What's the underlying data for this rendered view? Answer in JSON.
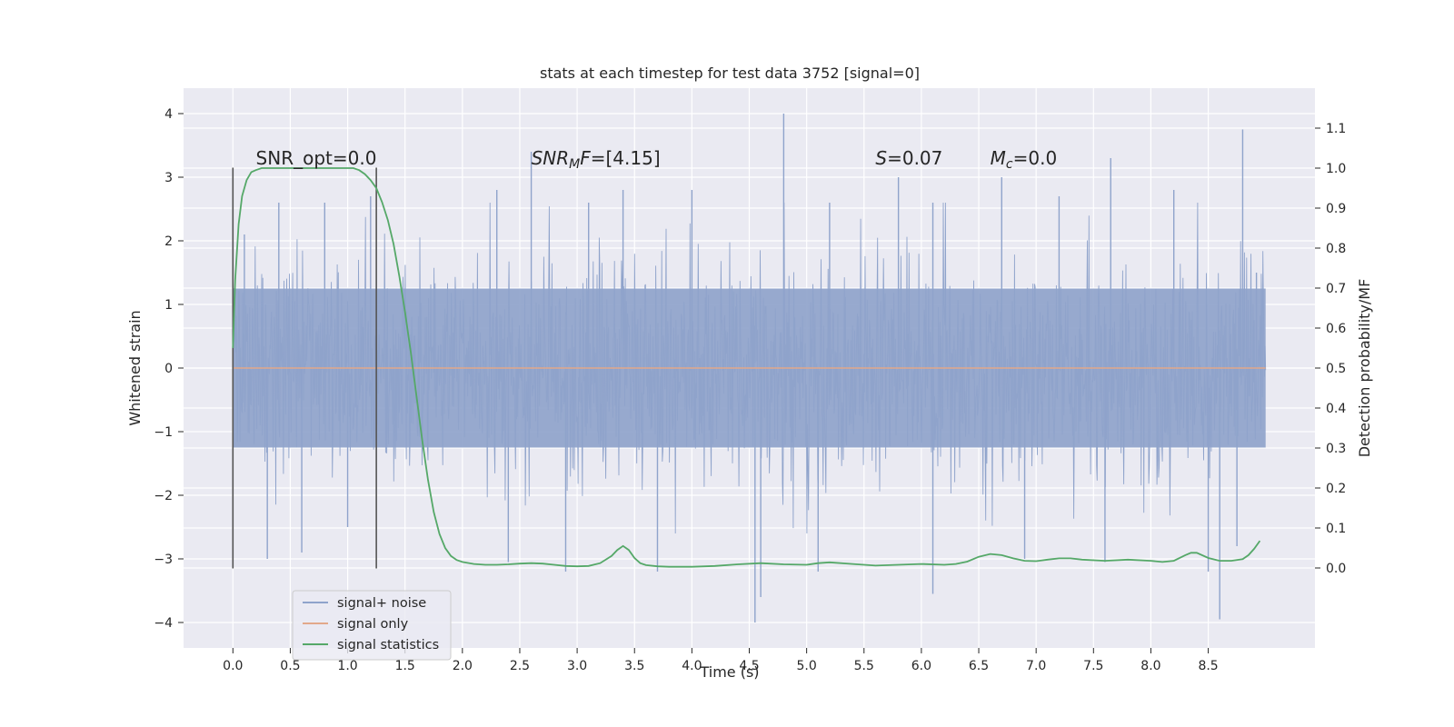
{
  "chart_data": {
    "type": "line",
    "title": "stats at each timestep for test data 3752 [signal=0]",
    "xlabel": "Time (s)",
    "ylabel": "Whitened strain",
    "y2label": "Detection probability/MF",
    "xlim": [
      -0.43,
      9.43
    ],
    "ylim": [
      -4.4,
      4.4
    ],
    "y2lim": [
      -0.2,
      1.2
    ],
    "grid": true,
    "xticks": [
      0.0,
      0.5,
      1.0,
      1.5,
      2.0,
      2.5,
      3.0,
      3.5,
      4.0,
      4.5,
      5.0,
      5.5,
      6.0,
      6.5,
      7.0,
      7.5,
      8.0,
      8.5
    ],
    "xtick_labels": [
      "0.0",
      "0.5",
      "1.0",
      "1.5",
      "2.0",
      "2.5",
      "3.0",
      "3.5",
      "4.0",
      "4.5",
      "5.0",
      "5.5",
      "6.0",
      "6.5",
      "7.0",
      "7.5",
      "8.0",
      "8.5"
    ],
    "yticks": [
      -4,
      -3,
      -2,
      -1,
      0,
      1,
      2,
      3,
      4
    ],
    "ytick_labels": [
      "−4",
      "−3",
      "−2",
      "−1",
      "0",
      "1",
      "2",
      "3",
      "4"
    ],
    "y2ticks": [
      0.0,
      0.1,
      0.2,
      0.3,
      0.4,
      0.5,
      0.6,
      0.7,
      0.8,
      0.9,
      1.0,
      1.1
    ],
    "y2tick_labels": [
      "0.0",
      "0.1",
      "0.2",
      "0.3",
      "0.4",
      "0.5",
      "0.6",
      "0.7",
      "0.8",
      "0.9",
      "1.0",
      "1.1"
    ],
    "annotations": [
      {
        "name": "snr-opt",
        "x": 0.2,
        "y": 3.2,
        "parts": [
          {
            "text": "SNR_opt=0.0",
            "style": "normal"
          }
        ]
      },
      {
        "name": "snr-mf",
        "x": 2.6,
        "y": 3.2,
        "parts": [
          {
            "text": "SNR",
            "style": "italic"
          },
          {
            "text": "M",
            "style": "italic-sub"
          },
          {
            "text": "F",
            "style": "italic"
          },
          {
            "text": "=[4.15]",
            "style": "normal"
          }
        ]
      },
      {
        "name": "s-value",
        "x": 5.6,
        "y": 3.2,
        "parts": [
          {
            "text": "S",
            "style": "italic"
          },
          {
            "text": "=0.07",
            "style": "normal"
          }
        ]
      },
      {
        "name": "mc-value",
        "x": 6.6,
        "y": 3.2,
        "parts": [
          {
            "text": "M",
            "style": "italic"
          },
          {
            "text": "c",
            "style": "italic-sub"
          },
          {
            "text": "=0.0",
            "style": "normal"
          }
        ]
      }
    ],
    "vlines": [
      {
        "x": 0.0,
        "ymin": -3.15,
        "ymax": 3.15
      },
      {
        "x": 1.25,
        "ymin": -3.15,
        "ymax": 3.15
      }
    ],
    "series": [
      {
        "name": "signal+ noise",
        "axis": "left",
        "color": "#8fa3cb",
        "t_start": 0.0,
        "t_end": 9.0,
        "core_band": [
          -1.25,
          1.25
        ],
        "positive_spikes": [
          [
            0.1,
            2.1
          ],
          [
            0.4,
            2.6
          ],
          [
            0.8,
            2.6
          ],
          [
            1.2,
            2.7
          ],
          [
            2.3,
            2.8
          ],
          [
            2.6,
            3.4
          ],
          [
            3.1,
            2.6
          ],
          [
            3.4,
            2.8
          ],
          [
            4.0,
            2.8
          ],
          [
            4.8,
            4.0
          ],
          [
            5.2,
            2.6
          ],
          [
            5.8,
            3.0
          ],
          [
            6.1,
            2.6
          ],
          [
            6.7,
            3.0
          ],
          [
            7.2,
            2.7
          ],
          [
            7.65,
            3.3
          ],
          [
            8.2,
            2.8
          ],
          [
            8.8,
            3.75
          ],
          [
            8.92,
            1.5
          ]
        ],
        "negative_spikes": [
          [
            0.3,
            -3.0
          ],
          [
            0.6,
            -2.9
          ],
          [
            1.0,
            -2.5
          ],
          [
            2.4,
            -3.05
          ],
          [
            2.9,
            -3.2
          ],
          [
            3.7,
            -3.2
          ],
          [
            4.55,
            -4.0
          ],
          [
            4.6,
            -3.6
          ],
          [
            5.1,
            -3.2
          ],
          [
            6.1,
            -3.55
          ],
          [
            6.9,
            -3.0
          ],
          [
            7.6,
            -3.05
          ],
          [
            8.5,
            -3.2
          ],
          [
            8.6,
            -3.95
          ],
          [
            8.75,
            -2.8
          ]
        ]
      },
      {
        "name": "signal only",
        "axis": "left",
        "color": "#e2a88a",
        "x": [
          0.0,
          9.0
        ],
        "y": [
          0.0,
          0.0
        ]
      },
      {
        "name": "signal statistics",
        "axis": "right",
        "color": "#55a868",
        "x": [
          0.0,
          0.02,
          0.05,
          0.08,
          0.12,
          0.16,
          0.2,
          0.25,
          0.3,
          0.4,
          0.5,
          0.6,
          0.7,
          0.8,
          0.9,
          1.0,
          1.05,
          1.1,
          1.15,
          1.2,
          1.25,
          1.3,
          1.35,
          1.4,
          1.45,
          1.5,
          1.55,
          1.6,
          1.65,
          1.7,
          1.75,
          1.8,
          1.85,
          1.9,
          1.95,
          2.0,
          2.1,
          2.2,
          2.3,
          2.4,
          2.5,
          2.6,
          2.7,
          2.8,
          2.9,
          3.0,
          3.1,
          3.2,
          3.3,
          3.35,
          3.4,
          3.45,
          3.5,
          3.55,
          3.6,
          3.7,
          3.8,
          3.9,
          4.0,
          4.2,
          4.4,
          4.6,
          4.8,
          5.0,
          5.1,
          5.2,
          5.4,
          5.6,
          5.8,
          6.0,
          6.2,
          6.3,
          6.4,
          6.5,
          6.6,
          6.7,
          6.8,
          6.9,
          7.0,
          7.1,
          7.2,
          7.3,
          7.4,
          7.6,
          7.8,
          8.0,
          8.1,
          8.2,
          8.3,
          8.35,
          8.4,
          8.5,
          8.6,
          8.7,
          8.8,
          8.85,
          8.9,
          8.95
        ],
        "y": [
          0.55,
          0.72,
          0.86,
          0.93,
          0.97,
          0.99,
          0.995,
          1.0,
          1.0,
          1.0,
          1.0,
          1.0,
          1.0,
          1.0,
          1.0,
          1.0,
          1.0,
          0.995,
          0.985,
          0.97,
          0.95,
          0.915,
          0.87,
          0.81,
          0.73,
          0.64,
          0.54,
          0.43,
          0.32,
          0.22,
          0.14,
          0.085,
          0.05,
          0.03,
          0.02,
          0.015,
          0.01,
          0.008,
          0.008,
          0.009,
          0.011,
          0.012,
          0.011,
          0.008,
          0.005,
          0.004,
          0.005,
          0.012,
          0.03,
          0.045,
          0.055,
          0.045,
          0.025,
          0.012,
          0.007,
          0.004,
          0.003,
          0.003,
          0.003,
          0.005,
          0.009,
          0.012,
          0.009,
          0.008,
          0.012,
          0.014,
          0.01,
          0.006,
          0.008,
          0.01,
          0.008,
          0.01,
          0.016,
          0.028,
          0.035,
          0.032,
          0.024,
          0.018,
          0.017,
          0.021,
          0.024,
          0.024,
          0.021,
          0.018,
          0.021,
          0.018,
          0.015,
          0.018,
          0.032,
          0.038,
          0.038,
          0.025,
          0.018,
          0.018,
          0.022,
          0.032,
          0.048,
          0.068
        ]
      }
    ],
    "legend": {
      "location": "lower-left",
      "entries": [
        {
          "label": "signal+ noise",
          "color": "#8fa3cb"
        },
        {
          "label": "signal only",
          "color": "#e2a88a"
        },
        {
          "label": "signal statistics",
          "color": "#55a868"
        }
      ]
    }
  }
}
